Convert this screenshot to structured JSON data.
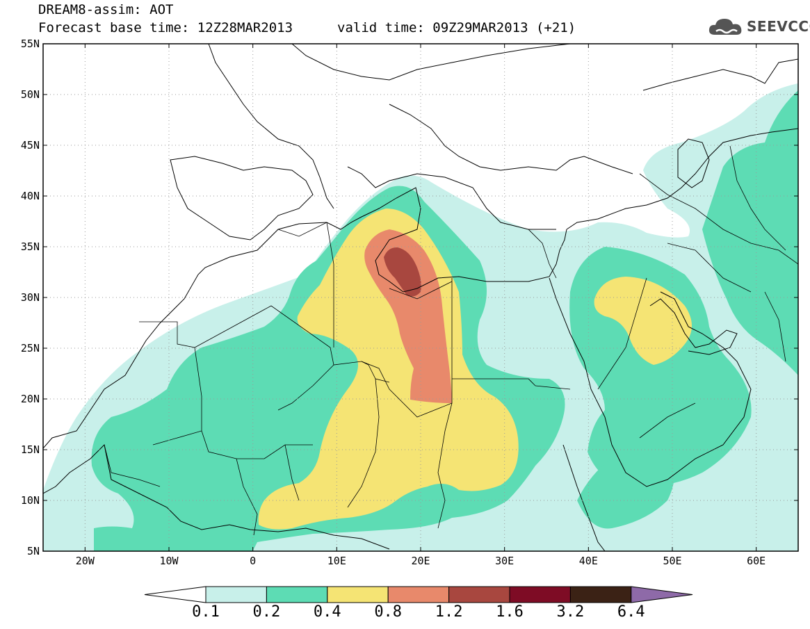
{
  "header": {
    "model_title": "DREAM8-assim: AOT",
    "base_time": "Forecast base time: 12Z28MAR2013",
    "valid_time": "valid time: 09Z29MAR2013 (+21)"
  },
  "logo": {
    "text": "SEEVCCC",
    "icon": "cloud-icon",
    "color": "#555555"
  },
  "map": {
    "lon_range": [
      -25,
      65
    ],
    "lat_range": [
      5,
      55
    ],
    "lat_ticks": [
      {
        "value": 55,
        "label": "55N"
      },
      {
        "value": 50,
        "label": "50N"
      },
      {
        "value": 45,
        "label": "45N"
      },
      {
        "value": 40,
        "label": "40N"
      },
      {
        "value": 35,
        "label": "35N"
      },
      {
        "value": 30,
        "label": "30N"
      },
      {
        "value": 25,
        "label": "25N"
      },
      {
        "value": 20,
        "label": "20N"
      },
      {
        "value": 15,
        "label": "15N"
      },
      {
        "value": 10,
        "label": "10N"
      },
      {
        "value": 5,
        "label": "5N"
      }
    ],
    "lon_ticks": [
      {
        "value": -20,
        "label": "20W"
      },
      {
        "value": -10,
        "label": "10W"
      },
      {
        "value": 0,
        "label": "0"
      },
      {
        "value": 10,
        "label": "10E"
      },
      {
        "value": 20,
        "label": "20E"
      },
      {
        "value": 30,
        "label": "30E"
      },
      {
        "value": 40,
        "label": "40E"
      },
      {
        "value": 50,
        "label": "50E"
      },
      {
        "value": 60,
        "label": "60E"
      }
    ],
    "grid": true
  },
  "colorbar": {
    "levels": [
      "0.1",
      "0.2",
      "0.4",
      "0.8",
      "1.2",
      "1.6",
      "3.2",
      "6.4"
    ],
    "colors": [
      "#ffffff",
      "#c8f0ea",
      "#5ddcb4",
      "#f5e474",
      "#e8896b",
      "#a8473f",
      "#7e0c25",
      "#3b2215",
      "#8e6aa8"
    ]
  }
}
